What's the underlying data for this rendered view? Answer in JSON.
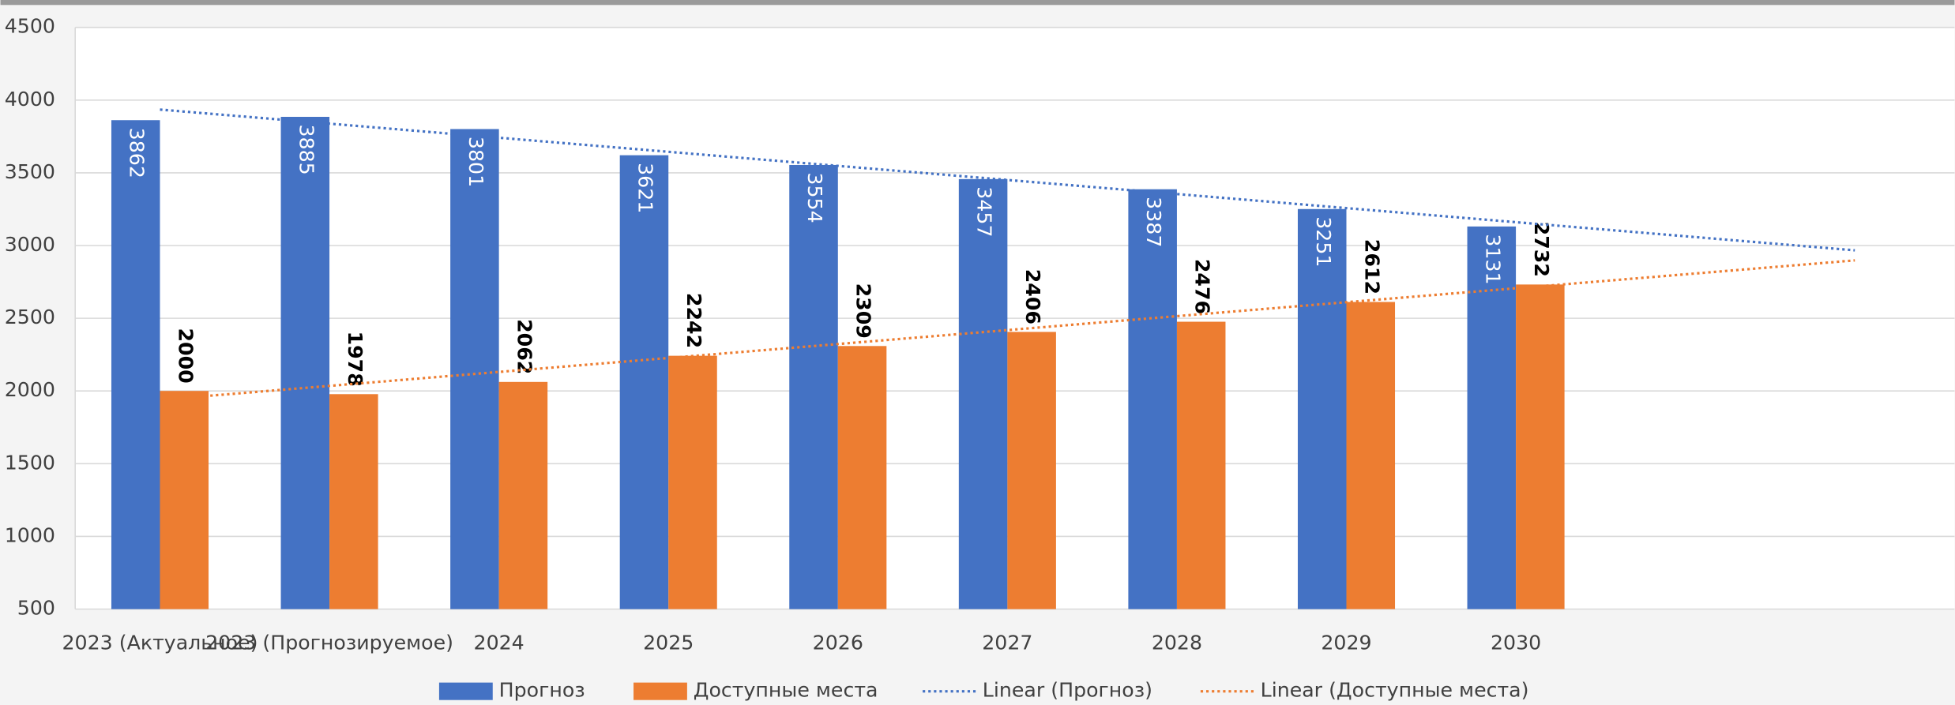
{
  "chart_data": {
    "type": "bar",
    "categories": [
      "2023 (Актуальное)",
      "2023 (Прогнозируемое)",
      "2024",
      "2025",
      "2026",
      "2027",
      "2028",
      "2029",
      "2030",
      null,
      null
    ],
    "series": [
      {
        "name": "Прогноз",
        "color": "#4472c4",
        "values": [
          3862,
          3885,
          3801,
          3621,
          3554,
          3457,
          3387,
          3251,
          3131,
          null,
          null
        ]
      },
      {
        "name": "Доступные места",
        "color": "#ed7d31",
        "values": [
          2000,
          1978,
          2062,
          2242,
          2309,
          2406,
          2476,
          2612,
          2732,
          null,
          null
        ]
      }
    ],
    "trendlines": [
      {
        "name": "Linear (Прогноз)",
        "color": "#4472c4",
        "values": [
          3935,
          2967
        ]
      },
      {
        "name": "Linear (Доступные места)",
        "color": "#ed7d31",
        "values": [
          1939,
          2898
        ]
      }
    ],
    "ylim": [
      500,
      4500
    ],
    "yticks": [
      500,
      1000,
      1500,
      2000,
      2500,
      3000,
      3500,
      4000,
      4500
    ],
    "grid": true,
    "legend": "bottom"
  }
}
